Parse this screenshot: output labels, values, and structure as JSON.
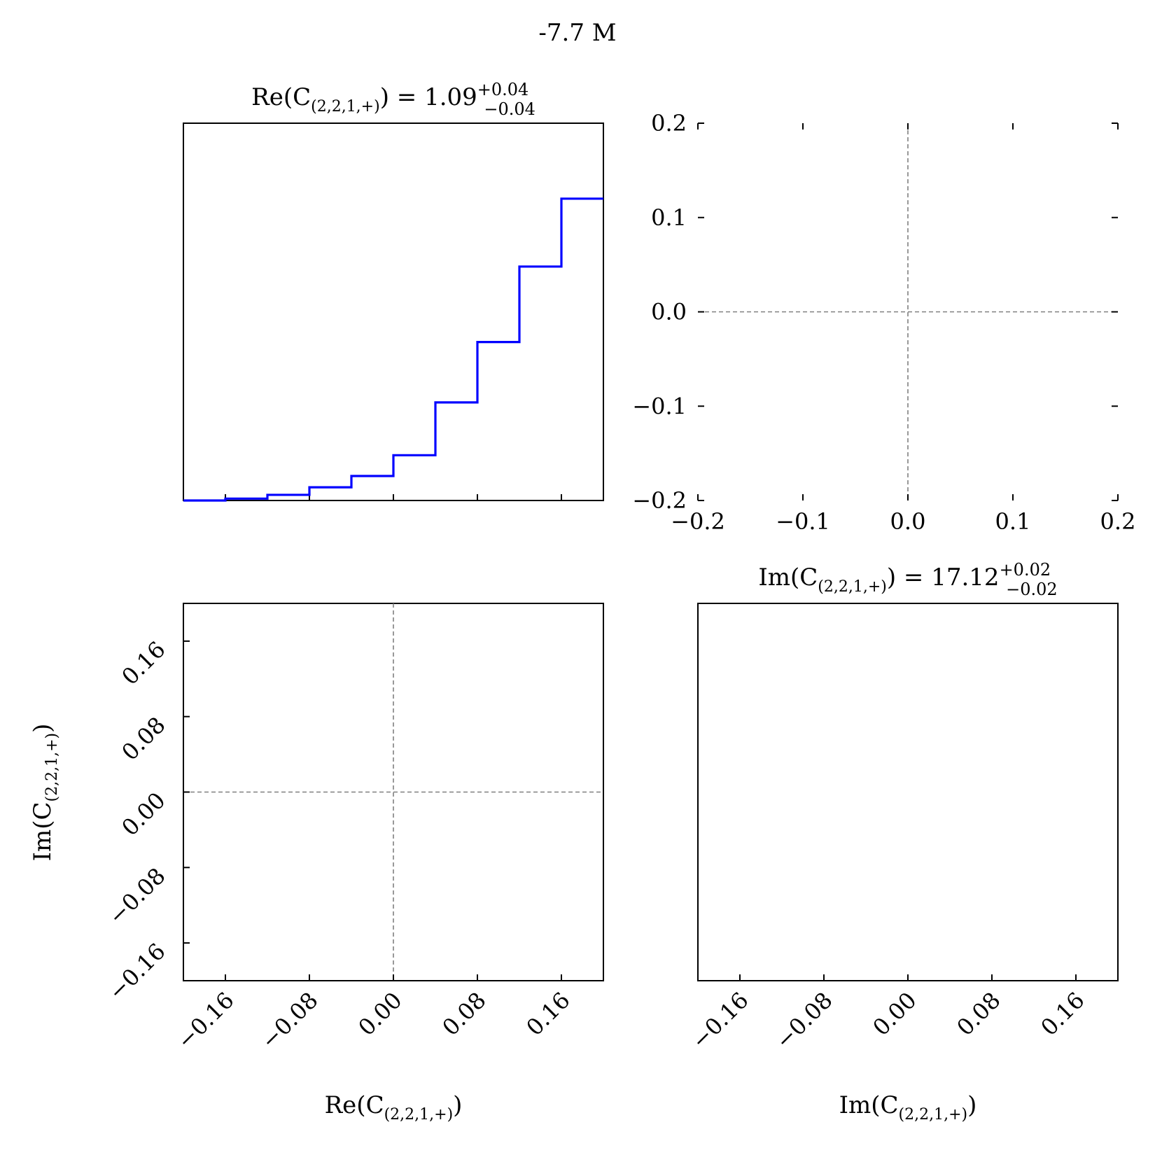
{
  "figure": {
    "suptitle": "-7.7 M"
  },
  "colors": {
    "histogram": "#0000ff",
    "reference_lines": "#808080",
    "frame": "#000000"
  },
  "chart_data": [
    {
      "panel": "top-left",
      "type": "bar",
      "style": "step-histogram",
      "title": {
        "base": "Re(C",
        "subscript": "(2,2,1,+)",
        "tail": ") = 1.09",
        "upper": "+0.04",
        "lower": "−0.04"
      },
      "xlim": [
        -0.2,
        0.2
      ],
      "bin_edges": [
        -0.2,
        -0.16,
        -0.12,
        -0.08,
        -0.04,
        0.0,
        0.04,
        0.08,
        0.12,
        0.16,
        0.2
      ],
      "values": [
        0,
        0.005,
        0.015,
        0.035,
        0.065,
        0.12,
        0.26,
        0.42,
        0.62,
        0.8
      ],
      "ylim": [
        0,
        1.0
      ],
      "xticks": [
        -0.16,
        -0.08,
        0.0,
        0.08,
        0.16
      ],
      "xtick_labels_visible": false,
      "yticks_visible": false
    },
    {
      "panel": "top-right",
      "type": "scatter",
      "title": "",
      "xlim": [
        -0.2,
        0.2
      ],
      "ylim": [
        -0.2,
        0.2
      ],
      "xticks": [
        -0.2,
        -0.1,
        0.0,
        0.1,
        0.2
      ],
      "yticks": [
        -0.2,
        -0.1,
        0.0,
        0.1,
        0.2
      ],
      "xtick_labels": [
        "−0.2",
        "−0.1",
        "0.0",
        "0.1",
        "0.2"
      ],
      "ytick_labels": [
        "−0.2",
        "−0.1",
        "0.0",
        "0.1",
        "0.2"
      ],
      "reference_lines": {
        "x": 0.0,
        "y": 0.0
      },
      "frame": "ticks-only"
    },
    {
      "panel": "bottom-left",
      "type": "scatter",
      "xlim": [
        -0.2,
        0.2
      ],
      "ylim": [
        -0.2,
        0.2
      ],
      "xticks": [
        -0.16,
        -0.08,
        0.0,
        0.08,
        0.16
      ],
      "yticks": [
        -0.16,
        -0.08,
        0.0,
        0.08,
        0.16
      ],
      "xtick_labels": [
        "−0.16",
        "−0.08",
        "0.00",
        "0.08",
        "0.16"
      ],
      "ytick_labels": [
        "−0.16",
        "−0.08",
        "0.00",
        "0.08",
        "0.16"
      ],
      "reference_lines": {
        "x": 0.0,
        "y": 0.0
      },
      "xlabel": {
        "base": "Re(C",
        "subscript": "(2,2,1,+)",
        "tail": ")"
      },
      "ylabel": {
        "base": "Im(C",
        "subscript": "(2,2,1,+)",
        "tail": ")"
      }
    },
    {
      "panel": "bottom-right",
      "type": "bar",
      "style": "step-histogram",
      "title": {
        "base": "Im(C",
        "subscript": "(2,2,1,+)",
        "tail": ") = 17.12",
        "upper": "+0.02",
        "lower": "−0.02"
      },
      "xlim": [
        -0.2,
        0.2
      ],
      "values": [],
      "xticks": [
        -0.16,
        -0.08,
        0.0,
        0.08,
        0.16
      ],
      "xtick_labels": [
        "−0.16",
        "−0.08",
        "0.00",
        "0.08",
        "0.16"
      ],
      "xlabel": {
        "base": "Im(C",
        "subscript": "(2,2,1,+)",
        "tail": ")"
      }
    }
  ]
}
